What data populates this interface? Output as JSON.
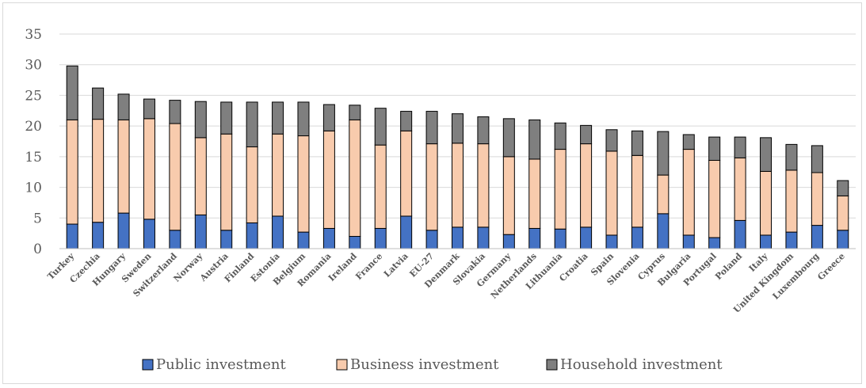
{
  "chart_data": {
    "type": "bar",
    "stacked": true,
    "title": "",
    "xlabel": "",
    "ylabel": "",
    "ylim": [
      0,
      35
    ],
    "yticks": [
      0,
      5,
      10,
      15,
      20,
      25,
      30,
      35
    ],
    "grid": true,
    "legend_position": "bottom",
    "categories": [
      "Turkey",
      "Czechia",
      "Hungary",
      "Sweden",
      "Switzerland",
      "Norway",
      "Austria",
      "Finland",
      "Estonia",
      "Belgium",
      "Romania",
      "Ireland",
      "France",
      "Latvia",
      "EU-27",
      "Denmark",
      "Slovakia",
      "Germany",
      "Netherlands",
      "Lithuania",
      "Croatia",
      "Spain",
      "Slovenia",
      "Cyprus",
      "Bulgaria",
      "Portugal",
      "Poland",
      "Italy",
      "United Kingdom",
      "Luxembourg",
      "Greece"
    ],
    "series": [
      {
        "name": "Public investment",
        "color": "#4472c4",
        "values": [
          4.0,
          4.3,
          5.8,
          4.8,
          3.0,
          5.5,
          3.0,
          4.2,
          5.3,
          2.7,
          3.3,
          2.0,
          3.3,
          5.3,
          3.0,
          3.5,
          3.5,
          2.3,
          3.3,
          3.2,
          3.5,
          2.2,
          3.5,
          5.7,
          2.2,
          1.8,
          4.6,
          2.2,
          2.7,
          3.8,
          3.0
        ]
      },
      {
        "name": "Business investment",
        "color": "#f8cbad",
        "values": [
          17.0,
          16.8,
          15.2,
          16.4,
          17.4,
          12.6,
          15.7,
          12.4,
          13.4,
          15.7,
          15.9,
          19.0,
          13.6,
          13.9,
          14.1,
          13.7,
          13.6,
          12.7,
          11.3,
          13.0,
          13.6,
          13.7,
          11.7,
          6.3,
          14.0,
          12.6,
          10.2,
          10.4,
          10.1,
          8.6,
          5.6
        ]
      },
      {
        "name": "Household investment",
        "color": "#7f7f7f",
        "values": [
          8.8,
          5.1,
          4.2,
          3.2,
          3.8,
          5.9,
          5.2,
          7.3,
          5.2,
          5.5,
          4.3,
          2.4,
          6.0,
          3.2,
          5.3,
          4.8,
          4.4,
          6.2,
          6.4,
          4.3,
          3.0,
          3.5,
          4.0,
          7.1,
          2.4,
          3.8,
          3.4,
          5.5,
          4.2,
          4.4,
          2.5
        ]
      }
    ]
  }
}
